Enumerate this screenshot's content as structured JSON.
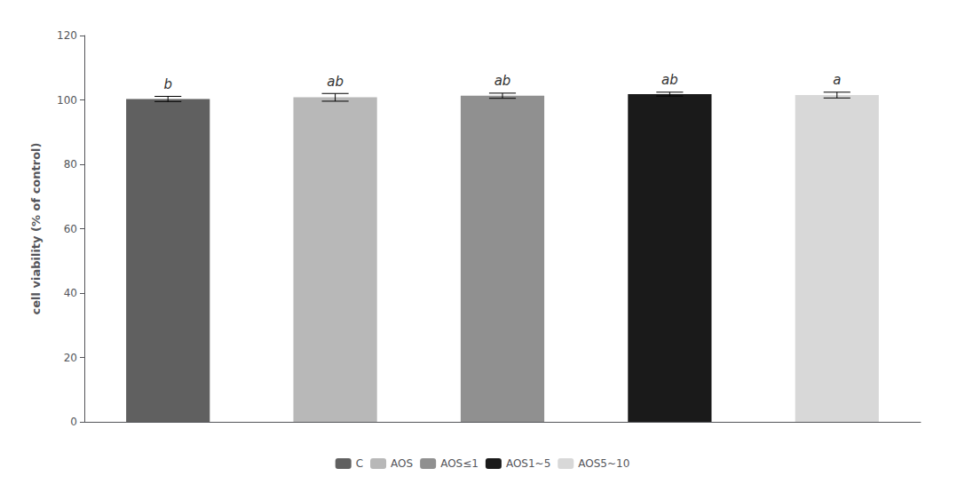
{
  "chart_data": {
    "type": "bar",
    "categories": [
      "C",
      "AOS",
      "AOS≤1",
      "AOS1~5",
      "AOS5~10"
    ],
    "values": [
      100.3,
      100.8,
      101.3,
      101.8,
      101.5
    ],
    "errors": [
      0.8,
      1.2,
      0.8,
      0.6,
      0.9
    ],
    "colors": [
      "#606060",
      "#b8b8b8",
      "#909090",
      "#1a1a1a",
      "#d8d8d8"
    ],
    "annotations": [
      "b",
      "ab",
      "ab",
      "ab",
      "a"
    ],
    "ylabel": "cell viability (% of control)",
    "ylim": [
      0,
      120
    ],
    "yticks": [
      0,
      20,
      40,
      60,
      80,
      100,
      120
    ],
    "grid": false,
    "legend": "bottom",
    "tick_labels": "y"
  }
}
